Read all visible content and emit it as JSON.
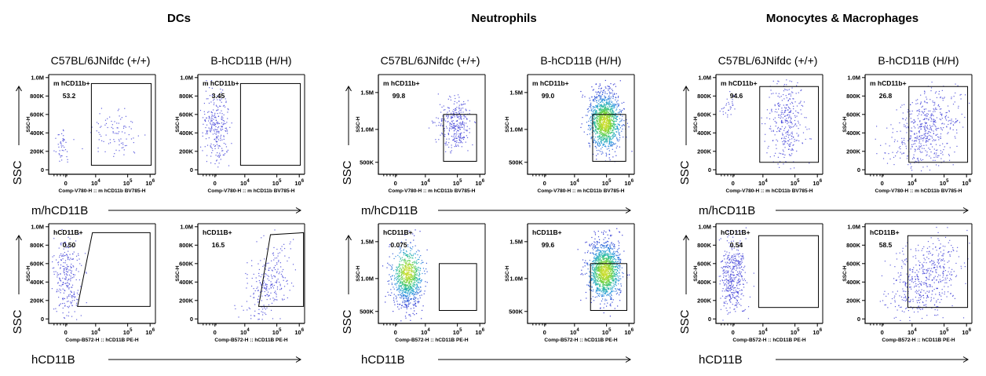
{
  "chart_data": {
    "type": "scatter",
    "description_note": "",
    "groups": [
      {
        "title": "DCs",
        "columns": [
          "C57BL/6JNifdc (+/+)",
          "B-hCD11B (H/H)"
        ],
        "rows": [
          {
            "y_axis_label": "SSC",
            "x_axis_label": "m/hCD11B",
            "plots": [
              {
                "gate_name": "m hCD11b+",
                "gate_value": "53.2",
                "y_param": "SSC-H",
                "x_param": "Comp-V780-H :: m hCD11b BV785-H",
                "y_ticks": [
                  "1.0M",
                  "800K",
                  "600K",
                  "400K",
                  "200K",
                  "0"
                ],
                "x_ticks": [
                  "0",
                  "10^4",
                  "10^5",
                  "10^6"
                ],
                "cloud": "mixed-low"
              },
              {
                "gate_name": "m hCD11b+",
                "gate_value": "3.45",
                "y_param": "SSC-H",
                "x_param": "Comp-V780-H :: m hCD11b BV785-H",
                "y_ticks": [
                  "1.0M",
                  "800K",
                  "600K",
                  "400K",
                  "200K",
                  "0"
                ],
                "x_ticks": [
                  "0",
                  "10^4",
                  "10^5",
                  "10^6"
                ],
                "cloud": "negative"
              }
            ]
          },
          {
            "y_axis_label": "SSC",
            "x_axis_label": "hCD11B",
            "plots": [
              {
                "gate_name": "hCD11B+",
                "gate_value": "0.50",
                "y_param": "SSC-H",
                "x_param": "Comp-B572-H :: hCD11B PE-H",
                "y_ticks": [
                  "1.0M",
                  "800K",
                  "600K",
                  "400K",
                  "200K",
                  "0"
                ],
                "x_ticks": [
                  "0",
                  "10^4",
                  "10^5",
                  "10^6"
                ],
                "cloud": "negative"
              },
              {
                "gate_name": "hCD11B+",
                "gate_value": "16.5",
                "y_param": "SSC-H",
                "x_param": "Comp-B572-H :: hCD11B PE-H",
                "y_ticks": [
                  "1.0M",
                  "800K",
                  "600K",
                  "400K",
                  "200K",
                  "0"
                ],
                "x_ticks": [
                  "0",
                  "10^4",
                  "10^5",
                  "10^6"
                ],
                "cloud": "diagonal"
              }
            ]
          }
        ]
      },
      {
        "title": "Neutrophils",
        "columns": [
          "C57BL/6JNifdc (+/+)",
          "B-hCD11B (H/H)"
        ],
        "rows": [
          {
            "y_axis_label": "SSC",
            "x_axis_label": "m/hCD11B",
            "plots": [
              {
                "gate_name": "m hCD11b+",
                "gate_value": "99.8",
                "y_param": "SSC-H",
                "x_param": "Comp-V780-H :: m hCD11b BV785-H",
                "y_ticks": [
                  "1.5M",
                  "1.0M",
                  "500K"
                ],
                "x_ticks": [
                  "0",
                  "10^4",
                  "10^5",
                  "10^6"
                ],
                "cloud": "positive-sparse"
              },
              {
                "gate_name": "m hCD11b+",
                "gate_value": "99.0",
                "y_param": "SSC-H",
                "x_param": "Comp-V780-H :: m hCD11b BV785-H",
                "y_ticks": [
                  "1.5M",
                  "1.0M",
                  "500K"
                ],
                "x_ticks": [
                  "0",
                  "10^4",
                  "10^5",
                  "10^6"
                ],
                "cloud": "positive-dense"
              }
            ]
          },
          {
            "y_axis_label": "SSC",
            "x_axis_label": "hCD11B",
            "plots": [
              {
                "gate_name": "hCD11B+",
                "gate_value": "0.075",
                "y_param": "SSC-H",
                "x_param": "Comp-B572-H :: hCD11B PE-H",
                "y_ticks": [
                  "1.5M",
                  "1.0M",
                  "500K"
                ],
                "x_ticks": [
                  "0",
                  "10^4",
                  "10^5",
                  "10^6"
                ],
                "cloud": "negative-dense"
              },
              {
                "gate_name": "hCD11B+",
                "gate_value": "99.6",
                "y_param": "SSC-H",
                "x_param": "Comp-B572-H :: hCD11B PE-H",
                "y_ticks": [
                  "1.5M",
                  "1.0M",
                  "500K"
                ],
                "x_ticks": [
                  "0",
                  "10^4",
                  "10^5",
                  "10^6"
                ],
                "cloud": "positive-dense"
              }
            ]
          }
        ]
      },
      {
        "title": "Monocytes & Macrophages",
        "columns": [
          "C57BL/6JNifdc (+/+)",
          "B-hCD11B (H/H)"
        ],
        "rows": [
          {
            "y_axis_label": "SSC",
            "x_axis_label": "m/hCD11B",
            "plots": [
              {
                "gate_name": "m hCD11b+",
                "gate_value": "94.6",
                "y_param": "SSC-H",
                "x_param": "Comp-V780-H :: m hCD11b BV785-H",
                "y_ticks": [
                  "1.0M",
                  "800K",
                  "600K",
                  "400K",
                  "200K",
                  "0"
                ],
                "x_ticks": [
                  "0",
                  "10^4",
                  "10^5",
                  "10^6"
                ],
                "cloud": "positive-mid"
              },
              {
                "gate_name": "m hCD11b+",
                "gate_value": "26.8",
                "y_param": "SSC-H",
                "x_param": "Comp-V780-H :: m hCD11b BV785-H",
                "y_ticks": [
                  "1.0M",
                  "800K",
                  "600K",
                  "400K",
                  "200K",
                  "0"
                ],
                "x_ticks": [
                  "0",
                  "10^4",
                  "10^5",
                  "10^6"
                ],
                "cloud": "spread-mid"
              }
            ]
          },
          {
            "y_axis_label": "SSC",
            "x_axis_label": "hCD11B",
            "plots": [
              {
                "gate_name": "hCD11B+",
                "gate_value": "0.54",
                "y_param": "SSC-H",
                "x_param": "Comp-B572-H :: hCD11B PE-H",
                "y_ticks": [
                  "1.0M",
                  "800K",
                  "600K",
                  "400K",
                  "200K",
                  "0"
                ],
                "x_ticks": [
                  "0",
                  "10^4",
                  "10^5",
                  "10^6"
                ],
                "cloud": "negative-mid"
              },
              {
                "gate_name": "hCD11B+",
                "gate_value": "58.5",
                "y_param": "SSC-H",
                "x_param": "Comp-B572-H :: hCD11B PE-H",
                "y_ticks": [
                  "1.0M",
                  "800K",
                  "600K",
                  "400K",
                  "200K",
                  "0"
                ],
                "x_ticks": [
                  "0",
                  "10^4",
                  "10^5",
                  "10^6"
                ],
                "cloud": "spread-mid"
              }
            ]
          }
        ]
      }
    ],
    "colors": {
      "sparse_dot": "#3a3ad6",
      "density_low": "#2a2ad0",
      "density_mid": "#1ab0c0",
      "density_high": "#7ad23a",
      "gate": "#000000"
    }
  }
}
